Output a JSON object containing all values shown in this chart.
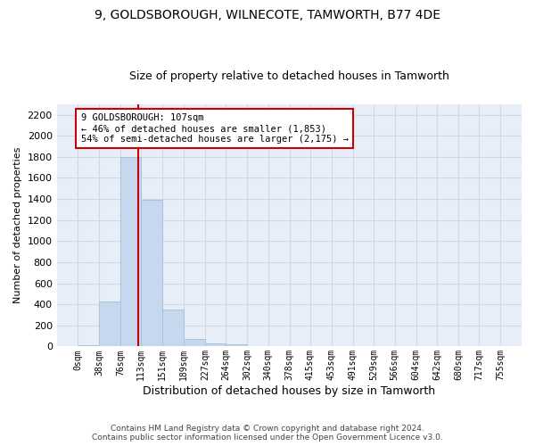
{
  "title": "9, GOLDSBOROUGH, WILNECOTE, TAMWORTH, B77 4DE",
  "subtitle": "Size of property relative to detached houses in Tamworth",
  "xlabel": "Distribution of detached houses by size in Tamworth",
  "ylabel": "Number of detached properties",
  "bar_edges": [
    0,
    38,
    76,
    113,
    151,
    189,
    227,
    264,
    302,
    340,
    378,
    415,
    453,
    491,
    529,
    566,
    604,
    642,
    680,
    717,
    755
  ],
  "bar_heights": [
    15,
    425,
    1800,
    1390,
    350,
    75,
    30,
    20,
    0,
    0,
    0,
    0,
    0,
    0,
    0,
    0,
    0,
    0,
    0,
    0
  ],
  "bar_color": "#c5d8ed",
  "bar_edgecolor": "#a8c4dc",
  "vline_x": 107,
  "vline_color": "#cc0000",
  "ylim": [
    0,
    2300
  ],
  "yticks": [
    0,
    200,
    400,
    600,
    800,
    1000,
    1200,
    1400,
    1600,
    1800,
    2000,
    2200
  ],
  "annotation_text": "9 GOLDSBOROUGH: 107sqm\n← 46% of detached houses are smaller (1,853)\n54% of semi-detached houses are larger (2,175) →",
  "annotation_box_color": "#ffffff",
  "annotation_box_edgecolor": "#cc0000",
  "footer_line1": "Contains HM Land Registry data © Crown copyright and database right 2024.",
  "footer_line2": "Contains public sector information licensed under the Open Government Licence v3.0.",
  "grid_color": "#d0d8e8",
  "background_color": "#e8eef8",
  "title_fontsize": 10,
  "subtitle_fontsize": 9,
  "ylabel_fontsize": 8,
  "xlabel_fontsize": 9,
  "tick_labels": [
    "0sqm",
    "38sqm",
    "76sqm",
    "113sqm",
    "151sqm",
    "189sqm",
    "227sqm",
    "264sqm",
    "302sqm",
    "340sqm",
    "378sqm",
    "415sqm",
    "453sqm",
    "491sqm",
    "529sqm",
    "566sqm",
    "604sqm",
    "642sqm",
    "680sqm",
    "717sqm",
    "755sqm"
  ]
}
